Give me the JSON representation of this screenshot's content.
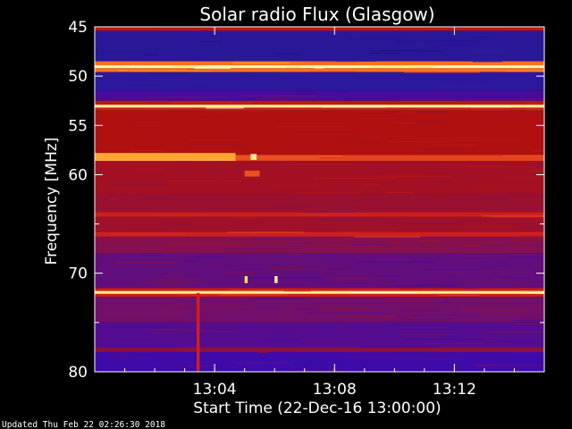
{
  "chart_data": {
    "type": "heatmap",
    "title": "Solar radio Flux (Glasgow)",
    "ylabel": "Frequency [MHz]",
    "xlabel": "Start Time (22-Dec-16 13:00:00)",
    "x_range_minutes": [
      0,
      15
    ],
    "x_ticks": [
      {
        "value": 4,
        "label": "13:04"
      },
      {
        "value": 8,
        "label": "13:08"
      },
      {
        "value": 12,
        "label": "13:12"
      }
    ],
    "y_range_mhz": [
      45,
      80
    ],
    "y_inverted": true,
    "y_ticks": [
      {
        "value": 45,
        "label": "45"
      },
      {
        "value": 50,
        "label": "50"
      },
      {
        "value": 55,
        "label": "55"
      },
      {
        "value": 60,
        "label": "60"
      },
      {
        "value": 65,
        "label": ""
      },
      {
        "value": 70,
        "label": "70"
      },
      {
        "value": 75,
        "label": ""
      },
      {
        "value": 80,
        "label": "80"
      }
    ],
    "colormap": [
      "#1a0a6e",
      "#2a1a9a",
      "#3a0ab0",
      "#7a1060",
      "#b01010",
      "#d02020",
      "#ff7020",
      "#ffd040",
      "#ffffc0"
    ],
    "frequency_bands": [
      {
        "from": 45.0,
        "to": 45.4,
        "level": 0.55
      },
      {
        "from": 45.4,
        "to": 48.5,
        "level": 0.12
      },
      {
        "from": 48.5,
        "to": 48.9,
        "level": 0.75
      },
      {
        "from": 48.9,
        "to": 49.2,
        "level": 0.98
      },
      {
        "from": 49.2,
        "to": 49.6,
        "level": 0.75
      },
      {
        "from": 49.6,
        "to": 51.5,
        "level": 0.14
      },
      {
        "from": 51.5,
        "to": 52.5,
        "level": 0.28
      },
      {
        "from": 52.5,
        "to": 52.9,
        "level": 0.55
      },
      {
        "from": 52.9,
        "to": 53.2,
        "level": 0.95
      },
      {
        "from": 53.2,
        "to": 53.5,
        "level": 0.6
      },
      {
        "from": 53.5,
        "to": 58.0,
        "level": 0.5
      },
      {
        "from": 58.0,
        "to": 58.6,
        "level": 0.68
      },
      {
        "from": 58.6,
        "to": 62.0,
        "level": 0.47
      },
      {
        "from": 62.0,
        "to": 63.8,
        "level": 0.45
      },
      {
        "from": 63.8,
        "to": 64.3,
        "level": 0.62
      },
      {
        "from": 64.3,
        "to": 65.8,
        "level": 0.46
      },
      {
        "from": 65.8,
        "to": 66.3,
        "level": 0.62
      },
      {
        "from": 66.3,
        "to": 68.0,
        "level": 0.4
      },
      {
        "from": 68.0,
        "to": 71.5,
        "level": 0.33
      },
      {
        "from": 71.5,
        "to": 71.8,
        "level": 0.6
      },
      {
        "from": 71.8,
        "to": 72.1,
        "level": 0.95
      },
      {
        "from": 72.1,
        "to": 72.4,
        "level": 0.6
      },
      {
        "from": 72.4,
        "to": 75.0,
        "level": 0.36
      },
      {
        "from": 75.0,
        "to": 77.5,
        "level": 0.3
      },
      {
        "from": 77.5,
        "to": 78.0,
        "level": 0.42
      },
      {
        "from": 78.0,
        "to": 80.0,
        "level": 0.26
      }
    ],
    "bursts": [
      {
        "t0": 0.0,
        "t1": 4.7,
        "f0": 57.8,
        "f1": 58.6,
        "level": 0.82
      },
      {
        "t0": 4.7,
        "t1": 7.5,
        "f0": 58.0,
        "f1": 58.5,
        "level": 0.7
      },
      {
        "t0": 5.2,
        "t1": 5.4,
        "f0": 57.9,
        "f1": 58.5,
        "level": 0.95
      },
      {
        "t0": 5.0,
        "t1": 5.5,
        "f0": 59.6,
        "f1": 60.2,
        "level": 0.7
      },
      {
        "t0": 5.0,
        "t1": 5.1,
        "f0": 70.3,
        "f1": 71.0,
        "level": 0.92
      },
      {
        "t0": 6.0,
        "t1": 6.1,
        "f0": 70.3,
        "f1": 71.0,
        "level": 0.98
      },
      {
        "t0": 3.4,
        "t1": 3.5,
        "f0": 72.0,
        "f1": 80.0,
        "level": 0.62
      }
    ]
  },
  "footer": {
    "updated": "Updated Thu Feb 22 02:26:30 2018"
  }
}
